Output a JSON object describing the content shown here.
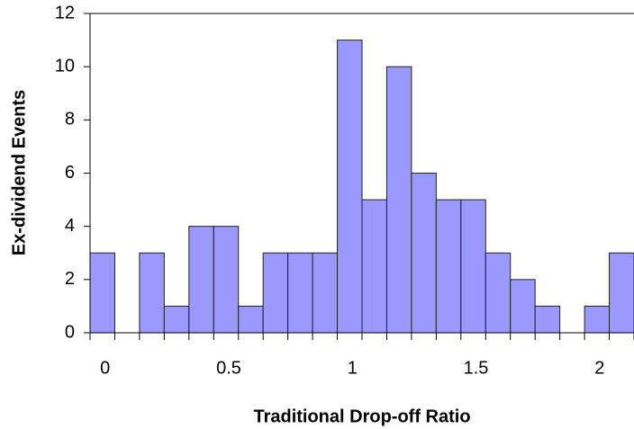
{
  "chart_data": {
    "type": "histogram",
    "xlabel": "Traditional Drop-off Ratio",
    "ylabel": "Ex-dividend Events",
    "bins": [
      -0.05,
      0.05,
      0.15,
      0.25,
      0.35,
      0.45,
      0.55,
      0.65,
      0.75,
      0.85,
      0.95,
      1.05,
      1.15,
      1.25,
      1.35,
      1.45,
      1.55,
      1.65,
      1.75,
      1.85,
      1.95,
      2.05,
      2.15
    ],
    "values": [
      3,
      0,
      3,
      1,
      4,
      4,
      1,
      3,
      3,
      3,
      11,
      5,
      10,
      6,
      5,
      5,
      3,
      2,
      1,
      0,
      1,
      3
    ],
    "color": "#9999ff",
    "xlim": [
      -0.05,
      2.15
    ],
    "xticks": [
      0,
      0.5,
      1,
      1.5,
      2
    ],
    "ylim": [
      0,
      12
    ],
    "yticks": [
      0,
      2,
      4,
      6,
      8,
      10,
      12
    ]
  }
}
